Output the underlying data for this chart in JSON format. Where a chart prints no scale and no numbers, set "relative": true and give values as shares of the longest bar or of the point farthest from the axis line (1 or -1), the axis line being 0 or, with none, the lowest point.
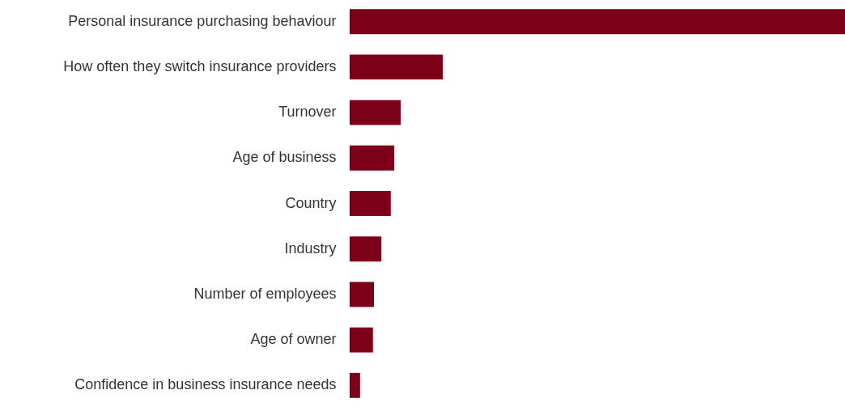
{
  "chart_data": {
    "type": "bar",
    "orientation": "horizontal",
    "relative": true,
    "color": "#7d0019",
    "categories": [
      "Personal insurance purchasing behaviour",
      "How often they switch insurance providers",
      "Turnover",
      "Age of business",
      "Country",
      "Industry",
      "Number of employees",
      "Age of owner",
      "Confidence in business insurance needs"
    ],
    "values": [
      1,
      0.188,
      0.103,
      0.09,
      0.083,
      0.064,
      0.049,
      0.047,
      0.021
    ]
  }
}
